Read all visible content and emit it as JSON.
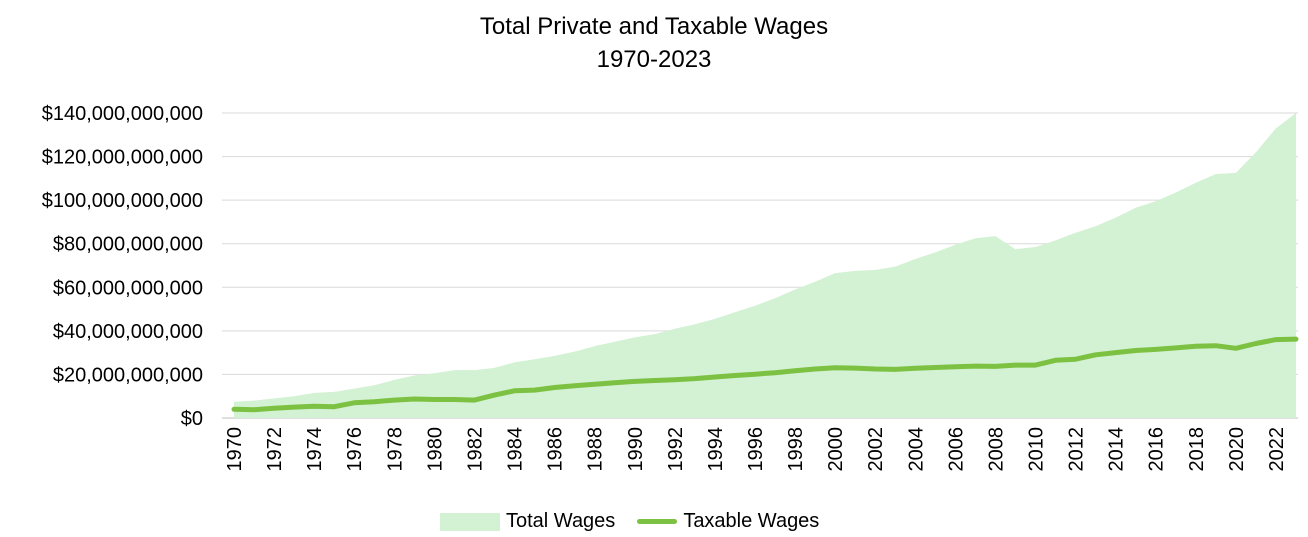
{
  "chart_data": {
    "type": "area",
    "title": "Total Private and Taxable Wages",
    "subtitle": "1970-2023",
    "xlabel": "",
    "ylabel": "",
    "ylim": [
      0,
      140000000000
    ],
    "y_ticks": [
      "$0",
      "$20,000,000,000",
      "$40,000,000,000",
      "$60,000,000,000",
      "$80,000,000,000",
      "$100,000,000,000",
      "$120,000,000,000",
      "$140,000,000,000"
    ],
    "grid": true,
    "legend_position": "bottom",
    "x": [
      1970,
      1971,
      1972,
      1973,
      1974,
      1975,
      1976,
      1977,
      1978,
      1979,
      1980,
      1981,
      1982,
      1983,
      1984,
      1985,
      1986,
      1987,
      1988,
      1989,
      1990,
      1991,
      1992,
      1993,
      1994,
      1995,
      1996,
      1997,
      1998,
      1999,
      2000,
      2001,
      2002,
      2003,
      2004,
      2005,
      2006,
      2007,
      2008,
      2009,
      2010,
      2011,
      2012,
      2013,
      2014,
      2015,
      2016,
      2017,
      2018,
      2019,
      2020,
      2021,
      2022,
      2023
    ],
    "x_tick_labels": [
      "1970",
      "1972",
      "1974",
      "1976",
      "1978",
      "1980",
      "1982",
      "1984",
      "1986",
      "1988",
      "1990",
      "1992",
      "1994",
      "1996",
      "1998",
      "2000",
      "2002",
      "2004",
      "2006",
      "2008",
      "2010",
      "2012",
      "2014",
      "2016",
      "2018",
      "2020",
      "2022"
    ],
    "series": [
      {
        "name": "Total Wages",
        "style": "area",
        "color": "#d3f1d3",
        "values": [
          7500000000,
          8000000000,
          9000000000,
          10000000000,
          11500000000,
          12000000000,
          13500000000,
          15000000000,
          17500000000,
          19500000000,
          20500000000,
          22000000000,
          22000000000,
          23000000000,
          25500000000,
          27000000000,
          28500000000,
          30500000000,
          33000000000,
          35000000000,
          37000000000,
          38500000000,
          41000000000,
          43000000000,
          45500000000,
          48500000000,
          51500000000,
          55000000000,
          59000000000,
          62500000000,
          66500000000,
          67500000000,
          68000000000,
          69500000000,
          73000000000,
          76000000000,
          79500000000,
          82500000000,
          83500000000,
          77500000000,
          78500000000,
          81500000000,
          85000000000,
          88000000000,
          92000000000,
          96500000000,
          99500000000,
          103500000000,
          108000000000,
          112000000000,
          112500000000,
          122000000000,
          133000000000,
          140000000000
        ]
      },
      {
        "name": "Taxable Wages",
        "style": "line",
        "color": "#7cc142",
        "values": [
          4000000000,
          3800000000,
          4500000000,
          5000000000,
          5400000000,
          5200000000,
          7000000000,
          7500000000,
          8200000000,
          8700000000,
          8500000000,
          8500000000,
          8200000000,
          10500000000,
          12500000000,
          12800000000,
          14000000000,
          14800000000,
          15500000000,
          16200000000,
          16800000000,
          17200000000,
          17600000000,
          18100000000,
          18800000000,
          19500000000,
          20100000000,
          20800000000,
          21700000000,
          22500000000,
          23100000000,
          22900000000,
          22500000000,
          22300000000,
          22800000000,
          23200000000,
          23500000000,
          23800000000,
          23700000000,
          24300000000,
          24300000000,
          26500000000,
          27000000000,
          29000000000,
          30000000000,
          31000000000,
          31500000000,
          32200000000,
          32900000000,
          33200000000,
          32000000000,
          34200000000,
          36000000000,
          36200000000
        ]
      }
    ]
  }
}
